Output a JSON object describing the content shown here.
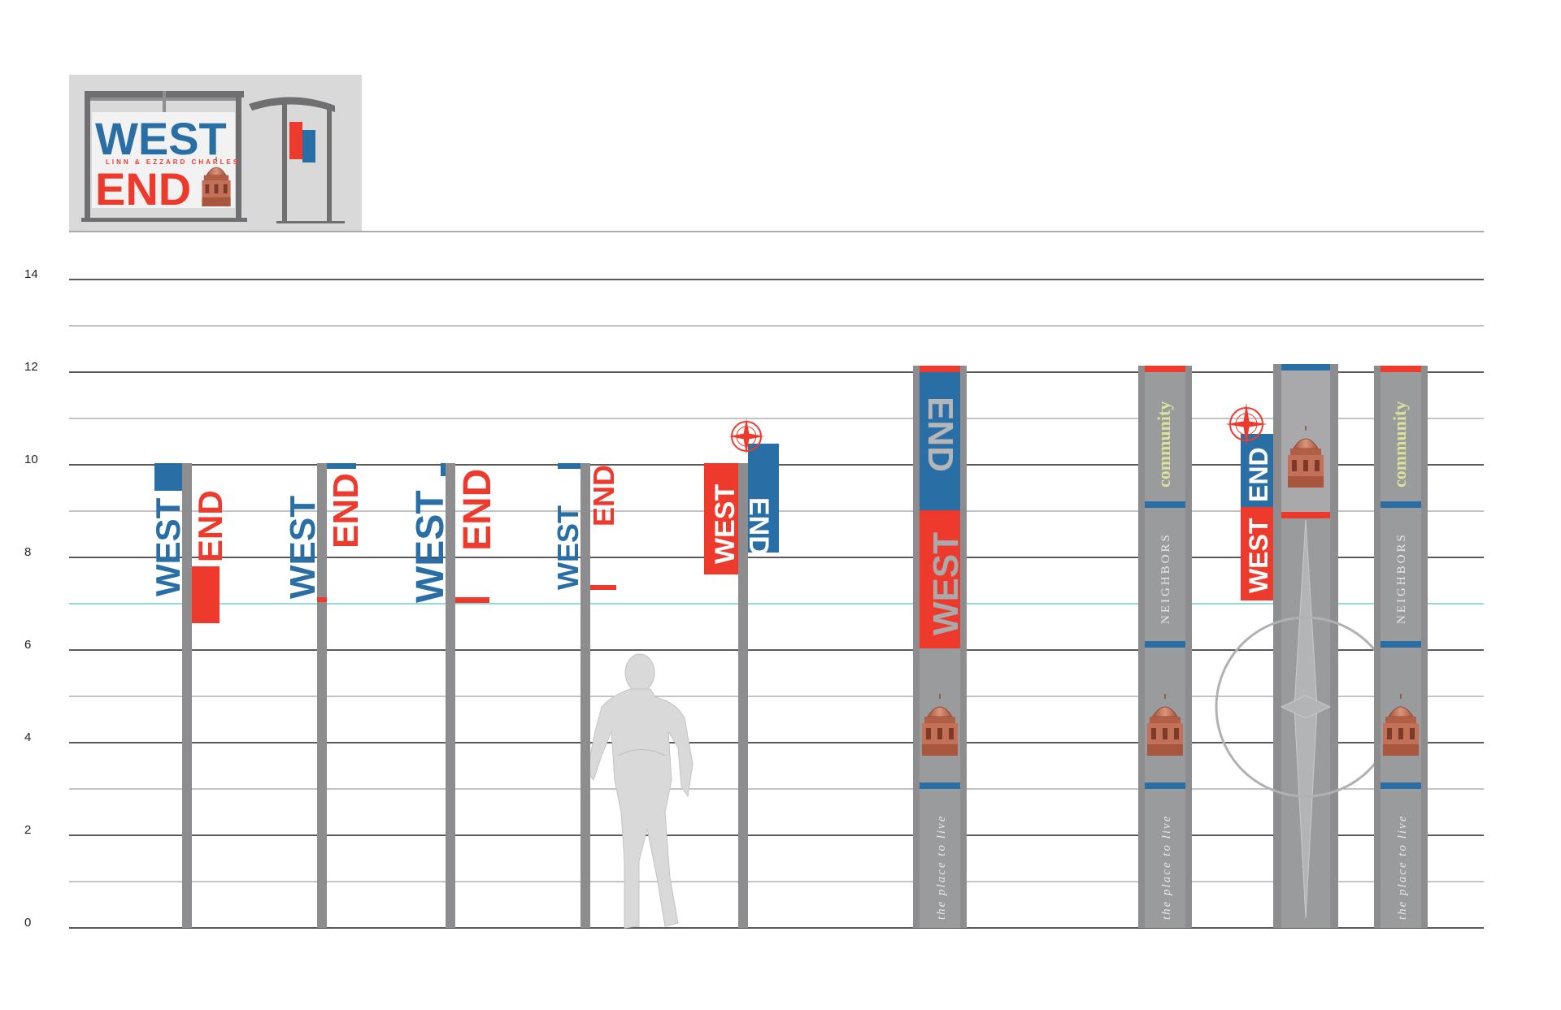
{
  "scale": {
    "unit": "ft",
    "ticks": [
      "0",
      "2",
      "4",
      "6",
      "8",
      "10",
      "12",
      "14"
    ],
    "reference_line_ft": 7
  },
  "header_card": {
    "title_west": "WEST",
    "title_end": "END",
    "subtitle": "LINN & EZZARD CHARLES"
  },
  "signs": {
    "west": "WEST",
    "end": "END",
    "community": "community",
    "neighbors": "NEIGHBORS",
    "tagline": "the place to live"
  },
  "heights_ft": {
    "pole_signs": 10,
    "pylons": 12
  },
  "colors": {
    "blue": "#2a6ea6",
    "red": "#ee3a2c",
    "pole_gray": "#8d8d8f",
    "panel_gray": "#9a9b9d",
    "reference_line": "#6fcfcb",
    "community_text": "#dde29a",
    "dome": "#c0745a",
    "card_bg": "#d9d9da"
  }
}
